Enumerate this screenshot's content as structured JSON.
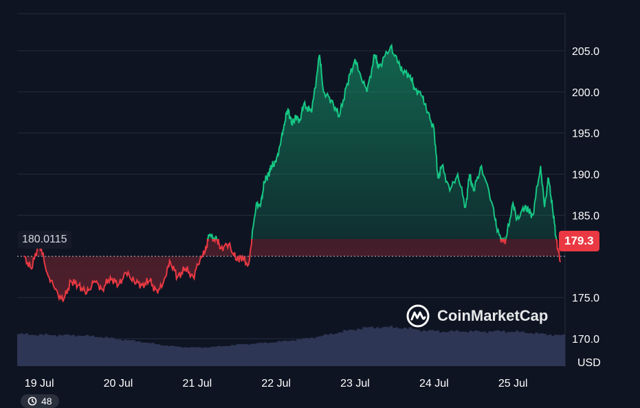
{
  "chart_data": {
    "type": "line",
    "title": "",
    "ylim": [
      166.5,
      209.5
    ],
    "y_ticks": [
      "205.0",
      "200.0",
      "195.0",
      "190.0",
      "185.0",
      "175.0",
      "170.0"
    ],
    "x_ticks": [
      "19 Jul",
      "20 Jul",
      "21 Jul",
      "22 Jul",
      "23 Jul",
      "24 Jul",
      "25 Jul"
    ],
    "unit_label": "USD",
    "reference_price": "180.0115",
    "current_price": "179.3",
    "series": [
      {
        "x": [
          18.8,
          18.9,
          19.0,
          19.1,
          19.2,
          19.3,
          19.4,
          19.5,
          19.6,
          19.7,
          19.8,
          19.9,
          20.0,
          20.1,
          20.2,
          20.3,
          20.4,
          20.5,
          20.6,
          20.65,
          20.75,
          20.85,
          20.95,
          21.05,
          21.1,
          21.15,
          21.25,
          21.3,
          21.4,
          21.5,
          21.55,
          21.65,
          21.75,
          21.8,
          21.85,
          21.9,
          21.95,
          22.0,
          22.05,
          22.1,
          22.15,
          22.2,
          22.25,
          22.3,
          22.35,
          22.45,
          22.55,
          22.6,
          22.7,
          22.8,
          22.9,
          23.0,
          23.05,
          23.15,
          23.25,
          23.3,
          23.45,
          23.55,
          23.6,
          23.7,
          23.75,
          23.85,
          23.9,
          24.0,
          24.05,
          24.1,
          24.2,
          24.3,
          24.4,
          24.45,
          24.5,
          24.6,
          24.75,
          24.8,
          24.9,
          25.0,
          25.05,
          25.15,
          25.2,
          25.25,
          25.35,
          25.4,
          25.45,
          25.5,
          25.55,
          25.6
        ],
        "values": [
          180.0,
          178.5,
          181.8,
          178.0,
          176.0,
          174.5,
          177.0,
          176.5,
          175.5,
          177.0,
          176.0,
          177.5,
          176.5,
          178.0,
          177.0,
          176.5,
          177.0,
          175.5,
          177.5,
          179.5,
          177.5,
          178.5,
          177.5,
          180.0,
          180.5,
          182.5,
          182.0,
          181.0,
          181.5,
          179.5,
          180.0,
          179.0,
          186.5,
          186.0,
          189.0,
          190.0,
          191.0,
          191.5,
          193.5,
          196.0,
          198.0,
          196.0,
          197.0,
          196.5,
          198.5,
          197.5,
          204.5,
          200.0,
          199.0,
          197.0,
          201.0,
          204.0,
          202.5,
          200.0,
          204.5,
          203.0,
          205.5,
          203.5,
          202.5,
          202.0,
          200.5,
          199.5,
          198.0,
          195.5,
          189.5,
          191.0,
          188.0,
          190.0,
          186.0,
          190.0,
          188.0,
          191.0,
          186.0,
          183.0,
          181.5,
          186.5,
          184.5,
          186.0,
          185.5,
          185.0,
          191.0,
          186.0,
          189.5,
          186.0,
          182.0,
          179.3
        ]
      }
    ],
    "volume_profile": [
      0.78,
      0.76,
      0.75,
      0.74,
      0.7,
      0.62,
      0.55,
      0.45,
      0.38,
      0.36,
      0.4,
      0.46,
      0.5,
      0.55,
      0.62,
      0.72,
      0.85,
      0.97,
      1.0,
      0.98,
      0.9,
      0.86,
      0.87,
      0.86,
      0.87,
      0.84,
      0.78,
      0.74
    ],
    "colors": {
      "up": "#16c784",
      "down": "#ea3943",
      "volume": "#2e3655",
      "grid": "#252c3c",
      "reference": "#b9bdc7"
    }
  },
  "brand": {
    "logo_icon": "coinmarketcap-logo-icon",
    "name": "CoinMarketCap"
  },
  "footer_pill": {
    "icon": "clock-icon",
    "text": "48"
  }
}
